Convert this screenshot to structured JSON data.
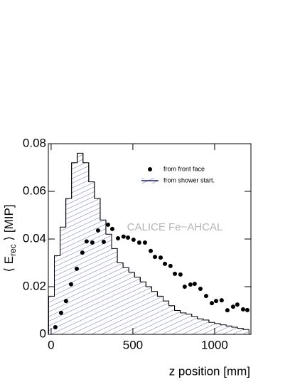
{
  "chart_data": {
    "type": "scatter-histogram",
    "x_label": "z position [mm]",
    "y_label": {
      "main": "⟨ E",
      "sub": "rec",
      "end": " ⟩ [MIP]"
    },
    "annotation": "CALICE Fe−AHCAL",
    "xlim": [
      -17,
      1222
    ],
    "ylim": [
      0,
      0.08
    ],
    "xticks": [
      0,
      500,
      1000
    ],
    "yticks": [
      0,
      0.02,
      0.04,
      0.06,
      0.08
    ],
    "series": [
      {
        "name": "from front face",
        "kind": "points",
        "color": "#000000",
        "x": [
          26,
          61,
          91,
          122,
          157,
          191,
          217,
          252,
          287,
          322,
          348,
          374,
          409,
          443,
          470,
          504,
          539,
          574,
          609,
          635,
          670,
          696,
          730,
          757,
          791,
          817,
          852,
          878,
          913,
          948,
          983,
          1009,
          1043,
          1078,
          1113,
          1139,
          1174,
          1200
        ],
        "values": [
          0.003,
          0.009,
          0.014,
          0.021,
          0.0275,
          0.0343,
          0.039,
          0.0385,
          0.0436,
          0.0388,
          0.046,
          0.0442,
          0.0403,
          0.041,
          0.0406,
          0.0397,
          0.0385,
          0.0385,
          0.035,
          0.0325,
          0.0322,
          0.0296,
          0.0287,
          0.0254,
          0.0251,
          0.02,
          0.0209,
          0.0212,
          0.0191,
          0.0161,
          0.0131,
          0.014,
          0.0143,
          0.0101,
          0.0116,
          0.0125,
          0.0105,
          0.0102
        ]
      },
      {
        "name": "from shower start.",
        "kind": "histogram",
        "color": "#1a1a7a",
        "bins": [
          -15,
          20,
          55,
          90,
          125,
          160,
          195,
          230,
          265,
          300,
          335,
          370,
          405,
          440,
          475,
          510,
          545,
          580,
          615,
          650,
          685,
          720,
          755,
          790,
          825,
          860,
          895,
          930,
          965,
          1000,
          1035,
          1070,
          1105,
          1140,
          1175,
          1210
        ],
        "values": [
          0.016,
          0.033,
          0.045,
          0.057,
          0.072,
          0.076,
          0.072,
          0.064,
          0.057,
          0.048,
          0.042,
          0.036,
          0.03,
          0.028,
          0.026,
          0.024,
          0.022,
          0.02,
          0.018,
          0.016,
          0.014,
          0.012,
          0.01,
          0.009,
          0.0085,
          0.0075,
          0.0065,
          0.006,
          0.005,
          0.0045,
          0.004,
          0.0035,
          0.003,
          0.0025,
          0.002
        ]
      }
    ]
  }
}
